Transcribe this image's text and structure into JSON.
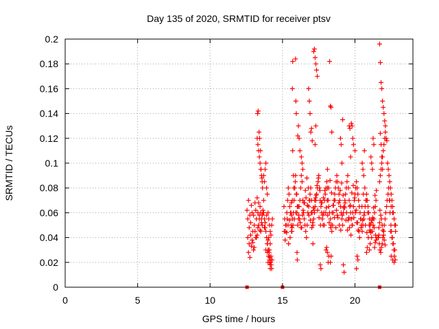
{
  "chart_data": {
    "type": "scatter",
    "title": "Day 135 of 2020, SRMTID for receiver ptsv",
    "xlabel": "GPS time / hours",
    "ylabel": "SRMTID / TECUs",
    "xlim": [
      0,
      24
    ],
    "ylim": [
      0,
      0.2
    ],
    "xticks": [
      0,
      5,
      10,
      15,
      20
    ],
    "xtick_labels": [
      "0",
      "5",
      "10",
      "15",
      "20"
    ],
    "yticks": [
      0,
      0.02,
      0.04,
      0.06,
      0.08,
      0.1,
      0.12,
      0.14,
      0.16,
      0.18,
      0.2
    ],
    "ytick_labels": [
      "0",
      "0.02",
      "0.04",
      "0.06",
      "0.08",
      "0.1",
      "0.12",
      "0.14",
      "0.16",
      "0.18",
      "0.2"
    ],
    "grid": true,
    "legend": "none",
    "marker": "plus",
    "color": "#ff0000",
    "series": [
      {
        "x": [
          12.55,
          12.6,
          12.65,
          12.7,
          12.75,
          12.8,
          12.85,
          12.9,
          12.95,
          13.0,
          13.05,
          13.1,
          13.15,
          13.2,
          13.25,
          13.3,
          13.35,
          13.4,
          13.45,
          13.5,
          13.55,
          13.6,
          13.65,
          13.7,
          13.75,
          13.8,
          13.85,
          13.9,
          13.95,
          14.0,
          14.05,
          14.1,
          14.15,
          14.2,
          14.25,
          14.3,
          12.6,
          12.7,
          12.8,
          12.9,
          13.0,
          13.1,
          13.2,
          13.3,
          13.4,
          13.5,
          13.6,
          13.7,
          13.8,
          13.9,
          14.0,
          14.1,
          14.2,
          12.65,
          12.75,
          12.85,
          12.95,
          13.05,
          13.15,
          13.25,
          13.35,
          13.45,
          13.55,
          13.65,
          13.75,
          13.85,
          13.95,
          14.05,
          14.15,
          14.25,
          13.25,
          13.3,
          13.35,
          13.4,
          13.45,
          13.5,
          13.55,
          13.6,
          13.28,
          13.32,
          13.38,
          13.42,
          13.48,
          13.52,
          13.58,
          13.62,
          13.7,
          13.75,
          13.8,
          13.85,
          13.9,
          13.95,
          14.0,
          14.05,
          14.1,
          14.15,
          14.0,
          14.05,
          14.1,
          14.15,
          14.2,
          13.95,
          14.02,
          14.08,
          14.12,
          14.18,
          14.22,
          14.28,
          15.1,
          15.15,
          15.2,
          15.25,
          15.3,
          15.35,
          15.4,
          15.45,
          15.5,
          15.55,
          15.6,
          15.65,
          15.7,
          15.75,
          15.8,
          15.85,
          15.9,
          15.95,
          16.0,
          16.05,
          16.1,
          16.15,
          16.2,
          16.25,
          16.3,
          16.35,
          16.4,
          16.45,
          16.5,
          16.55,
          16.6,
          16.65,
          16.7,
          16.75,
          16.8,
          16.85,
          16.9,
          16.95,
          17.0,
          17.05,
          17.1,
          17.15,
          17.2,
          17.25,
          17.3,
          17.35,
          17.4,
          17.45,
          17.5,
          17.55,
          17.6,
          17.65,
          17.7,
          17.75,
          17.8,
          17.85,
          17.9,
          17.95,
          18.0,
          18.05,
          18.1,
          18.15,
          18.2,
          18.25,
          18.3,
          18.35,
          18.4,
          18.45,
          18.5,
          18.55,
          18.6,
          18.65,
          18.7,
          18.75,
          18.8,
          18.85,
          18.9,
          18.95,
          19.0,
          19.05,
          19.1,
          19.15,
          19.2,
          19.25,
          19.3,
          19.35,
          19.4,
          19.45,
          19.5,
          19.55,
          19.6,
          19.65,
          19.7,
          19.75,
          19.8,
          19.85,
          19.9,
          19.95,
          20.0,
          20.05,
          20.1,
          20.15,
          20.2,
          20.25,
          20.3,
          20.35,
          20.4,
          20.45,
          20.5,
          20.55,
          20.6,
          20.65,
          20.7,
          20.75,
          20.8,
          20.85,
          20.9,
          20.95,
          21.0,
          21.05,
          21.1,
          21.15,
          21.2,
          21.25,
          21.3,
          21.35,
          21.4,
          21.45,
          21.5,
          15.12,
          15.22,
          15.32,
          15.42,
          15.52,
          15.62,
          15.72,
          15.82,
          15.92,
          16.02,
          16.12,
          16.22,
          16.32,
          16.42,
          16.52,
          16.62,
          16.72,
          16.82,
          16.92,
          17.02,
          17.12,
          17.22,
          17.32,
          17.42,
          17.52,
          17.62,
          17.72,
          17.82,
          17.92,
          18.02,
          18.12,
          18.22,
          18.32,
          18.42,
          18.52,
          18.62,
          18.72,
          18.82,
          18.92,
          19.02,
          19.12,
          19.22,
          19.32,
          19.42,
          19.52,
          19.62,
          19.72,
          19.82,
          19.92,
          20.02,
          20.12,
          20.22,
          20.32,
          20.42,
          20.52,
          20.62,
          20.72,
          20.82,
          20.92,
          21.02,
          21.12,
          21.22,
          21.32,
          21.42,
          15.18,
          15.28,
          15.38,
          15.48,
          15.58,
          15.68,
          15.78,
          15.88,
          15.98,
          16.08,
          16.18,
          16.28,
          16.38,
          16.48,
          16.58,
          16.68,
          16.78,
          16.88,
          16.98,
          17.08,
          17.18,
          17.28,
          17.38,
          17.48,
          17.58,
          17.68,
          17.78,
          17.88,
          17.98,
          18.08,
          18.18,
          18.28,
          18.38,
          18.48,
          18.58,
          18.68,
          18.78,
          18.88,
          18.98,
          19.08,
          19.18,
          19.28,
          19.38,
          19.48,
          19.58,
          19.68,
          19.78,
          19.88,
          19.98,
          20.08,
          20.18,
          20.28,
          20.38,
          20.48,
          20.58,
          20.68,
          20.78,
          20.88,
          20.98,
          21.08,
          21.18,
          21.28,
          21.38,
          21.48,
          15.6,
          15.62,
          15.65,
          15.68,
          15.7,
          15.9,
          15.92,
          15.95,
          16.1,
          16.15,
          16.2,
          16.05,
          17.0,
          17.05,
          17.1,
          17.15,
          17.2,
          17.25,
          17.3,
          17.35,
          17.4,
          16.8,
          16.85,
          16.9,
          16.95,
          17.3,
          17.25,
          15.7,
          15.75,
          18.1,
          18.15,
          18.2,
          18.25,
          18.3,
          18.35,
          18.4,
          19.0,
          19.05,
          19.1,
          19.15,
          19.6,
          19.65,
          19.7,
          19.75,
          19.8,
          19.85,
          19.9,
          20.0,
          20.5,
          20.55,
          20.6,
          20.65,
          21.1,
          21.15,
          21.2,
          21.25,
          21.3,
          16.3,
          16.35,
          16.4,
          18.0,
          18.05,
          18.1,
          18.3,
          18.35,
          16.0,
          16.02,
          17.6,
          17.65,
          19.2,
          19.25,
          20.1,
          20.15,
          20.2,
          20.8,
          20.85,
          21.0,
          21.05,
          21.35,
          21.4,
          21.45,
          21.6,
          21.65,
          21.7,
          21.75,
          21.8,
          21.85,
          21.9,
          21.95,
          22.0,
          22.05,
          22.1,
          22.15,
          22.2,
          22.25,
          22.3,
          22.35,
          22.4,
          22.45,
          22.5,
          22.55,
          22.6,
          22.65,
          22.7,
          22.75,
          22.8,
          21.62,
          21.68,
          21.72,
          21.78,
          21.82,
          21.88,
          21.92,
          21.98,
          22.02,
          22.08,
          22.12,
          22.18,
          22.22,
          22.28,
          22.32,
          22.38,
          22.42,
          22.48,
          22.52,
          22.58,
          22.62,
          22.68,
          22.72,
          22.78,
          21.7,
          21.75,
          21.8,
          21.85,
          21.9,
          21.95,
          22.0,
          22.05,
          22.1,
          21.72,
          21.78,
          21.82,
          21.88,
          21.92,
          21.98,
          22.02,
          22.08,
          21.75,
          21.8,
          21.85,
          21.9,
          21.65,
          21.7,
          22.4,
          22.5,
          22.6,
          22.7,
          22.8,
          22.45,
          22.55,
          22.65,
          22.75,
          22.5,
          22.6,
          22.7
        ],
        "y": [
          0.062,
          0.055,
          0.07,
          0.048,
          0.058,
          0.052,
          0.066,
          0.06,
          0.045,
          0.058,
          0.05,
          0.068,
          0.062,
          0.055,
          0.072,
          0.06,
          0.068,
          0.058,
          0.065,
          0.06,
          0.052,
          0.058,
          0.062,
          0.07,
          0.055,
          0.048,
          0.045,
          0.04,
          0.035,
          0.038,
          0.04,
          0.03,
          0.035,
          0.042,
          0.05,
          0.055,
          0.04,
          0.035,
          0.042,
          0.038,
          0.03,
          0.045,
          0.04,
          0.048,
          0.055,
          0.045,
          0.05,
          0.06,
          0.052,
          0.058,
          0.02,
          0.022,
          0.025,
          0.028,
          0.024,
          0.033,
          0.036,
          0.032,
          0.04,
          0.042,
          0.05,
          0.046,
          0.055,
          0.06,
          0.048,
          0.03,
          0.028,
          0.025,
          0.018,
          0.015,
          0.12,
          0.115,
          0.11,
          0.105,
          0.1,
          0.095,
          0.09,
          0.085,
          0.14,
          0.142,
          0.125,
          0.12,
          0.11,
          0.095,
          0.088,
          0.08,
          0.09,
          0.085,
          0.095,
          0.1,
          0.08,
          0.075,
          0.06,
          0.055,
          0.05,
          0.045,
          0.03,
          0.025,
          0.02,
          0.015,
          0.022,
          0.035,
          0.03,
          0.028,
          0.024,
          0.02,
          0.018,
          0.022,
          0.065,
          0.055,
          0.045,
          0.05,
          0.06,
          0.07,
          0.08,
          0.075,
          0.065,
          0.06,
          0.05,
          0.045,
          0.055,
          0.06,
          0.07,
          0.08,
          0.09,
          0.075,
          0.06,
          0.05,
          0.055,
          0.065,
          0.07,
          0.08,
          0.09,
          0.085,
          0.07,
          0.06,
          0.055,
          0.05,
          0.045,
          0.04,
          0.05,
          0.06,
          0.065,
          0.07,
          0.075,
          0.08,
          0.07,
          0.06,
          0.05,
          0.055,
          0.06,
          0.065,
          0.07,
          0.075,
          0.08,
          0.085,
          0.09,
          0.08,
          0.07,
          0.065,
          0.06,
          0.055,
          0.05,
          0.06,
          0.07,
          0.075,
          0.08,
          0.085,
          0.08,
          0.07,
          0.065,
          0.06,
          0.055,
          0.05,
          0.045,
          0.05,
          0.06,
          0.07,
          0.075,
          0.08,
          0.085,
          0.09,
          0.085,
          0.08,
          0.075,
          0.07,
          0.065,
          0.06,
          0.055,
          0.05,
          0.06,
          0.065,
          0.07,
          0.075,
          0.08,
          0.085,
          0.09,
          0.08,
          0.07,
          0.065,
          0.06,
          0.055,
          0.05,
          0.06,
          0.065,
          0.07,
          0.075,
          0.08,
          0.085,
          0.08,
          0.075,
          0.07,
          0.065,
          0.06,
          0.055,
          0.05,
          0.045,
          0.05,
          0.055,
          0.06,
          0.065,
          0.07,
          0.075,
          0.07,
          0.065,
          0.06,
          0.055,
          0.05,
          0.045,
          0.04,
          0.045,
          0.05,
          0.055,
          0.06,
          0.065,
          0.07,
          0.04,
          0.045,
          0.05,
          0.055,
          0.035,
          0.04,
          0.045,
          0.05,
          0.055,
          0.06,
          0.065,
          0.058,
          0.052,
          0.048,
          0.062,
          0.068,
          0.072,
          0.066,
          0.058,
          0.054,
          0.048,
          0.064,
          0.07,
          0.074,
          0.062,
          0.056,
          0.05,
          0.068,
          0.072,
          0.078,
          0.064,
          0.058,
          0.052,
          0.048,
          0.06,
          0.066,
          0.07,
          0.062,
          0.056,
          0.05,
          0.046,
          0.058,
          0.064,
          0.068,
          0.06,
          0.054,
          0.048,
          0.042,
          0.05,
          0.056,
          0.06,
          0.052,
          0.046,
          0.04,
          0.048,
          0.054,
          0.058,
          0.05,
          0.044,
          0.04,
          0.046,
          0.052,
          0.056,
          0.048,
          0.042,
          0.038,
          0.044,
          0.05,
          0.054,
          0.06,
          0.07,
          0.08,
          0.085,
          0.075,
          0.065,
          0.055,
          0.048,
          0.058,
          0.068,
          0.078,
          0.088,
          0.08,
          0.07,
          0.06,
          0.052,
          0.062,
          0.072,
          0.082,
          0.088,
          0.078,
          0.068,
          0.058,
          0.05,
          0.06,
          0.07,
          0.08,
          0.086,
          0.076,
          0.066,
          0.056,
          0.048,
          0.058,
          0.068,
          0.078,
          0.084,
          0.074,
          0.064,
          0.054,
          0.046,
          0.056,
          0.066,
          0.076,
          0.082,
          0.072,
          0.062,
          0.052,
          0.045,
          0.055,
          0.065,
          0.075,
          0.08,
          0.07,
          0.06,
          0.05,
          0.044,
          0.054,
          0.064,
          0.074,
          0.078,
          0.068,
          0.058,
          0.048,
          0.16,
          0.182,
          0.184,
          0.15,
          0.14,
          0.13,
          0.12,
          0.11,
          0.122,
          0.128,
          0.118,
          0.035,
          0.19,
          0.192,
          0.185,
          0.18,
          0.175,
          0.17,
          0.16,
          0.15,
          0.14,
          0.125,
          0.13,
          0.115,
          0.11,
          0.09,
          0.095,
          0.02,
          0.025,
          0.182,
          0.146,
          0.145,
          0.125,
          0.12,
          0.115,
          0.1,
          0.135,
          0.13,
          0.128,
          0.105,
          0.132,
          0.13,
          0.12,
          0.115,
          0.11,
          0.1,
          0.095,
          0.09,
          0.11,
          0.105,
          0.1,
          0.095,
          0.12,
          0.115,
          0.105,
          0.1,
          0.095,
          0.03,
          0.032,
          0.028,
          0.02,
          0.025,
          0.028,
          0.022,
          0.018,
          0.015,
          0.018,
          0.012,
          0.015,
          0.025,
          0.022,
          0.028,
          0.032,
          0.03,
          0.035,
          0.032,
          0.036,
          0.038,
          0.04,
          0.042,
          0.196,
          0.181,
          0.165,
          0.16,
          0.15,
          0.145,
          0.14,
          0.134,
          0.13,
          0.12,
          0.118,
          0.1,
          0.095,
          0.09,
          0.085,
          0.08,
          0.075,
          0.07,
          0.065,
          0.06,
          0.055,
          0.05,
          0.045,
          0.04,
          0.035,
          0.03,
          0.028,
          0.032,
          0.035,
          0.04,
          0.045,
          0.05,
          0.055,
          0.06,
          0.065,
          0.07,
          0.075,
          0.08,
          0.07,
          0.06,
          0.05,
          0.045,
          0.04,
          0.035,
          0.03,
          0.025,
          0.022,
          0.085,
          0.09,
          0.095,
          0.1,
          0.105,
          0.11,
          0.115,
          0.12,
          0.125,
          0.062,
          0.058,
          0.055,
          0.05,
          0.046,
          0.042,
          0.038,
          0.034,
          0.124,
          0.115,
          0.105,
          0.095,
          0.048,
          0.052,
          0.07,
          0.065,
          0.06,
          0.055,
          0.05,
          0.045,
          0.04,
          0.035,
          0.03,
          0.025,
          0.022,
          0.02
        ]
      }
    ],
    "markers_on_xaxis": [
      12.55,
      15.0,
      21.7
    ]
  }
}
